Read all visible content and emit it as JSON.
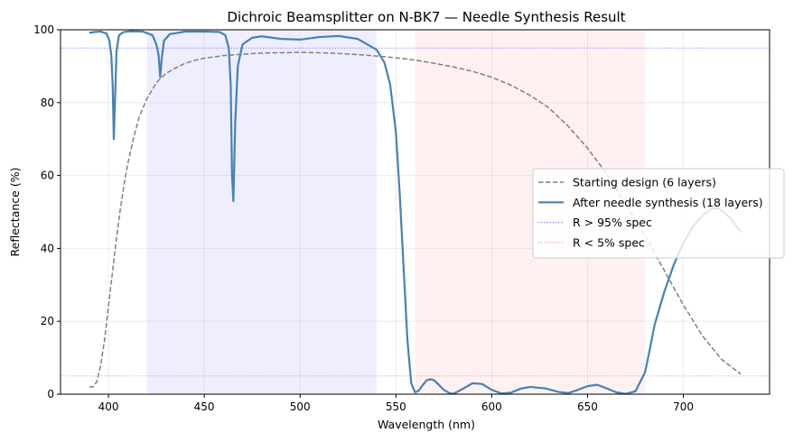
{
  "chart_data": {
    "type": "line",
    "title": "Dichroic Beamsplitter on N-BK7 — Needle Synthesis Result",
    "xlabel": "Wavelength (nm)",
    "ylabel": "Reflectance (%)",
    "xlim": [
      375,
      745
    ],
    "ylim": [
      0,
      100
    ],
    "xticks": [
      400,
      450,
      500,
      550,
      600,
      650,
      700
    ],
    "yticks": [
      0,
      20,
      40,
      60,
      80,
      100
    ],
    "grid": true,
    "legend_position": "center-right",
    "bands": [
      {
        "x0": 420,
        "x1": 540,
        "color": "#7777ff",
        "opacity": 0.12
      },
      {
        "x0": 560,
        "x1": 680,
        "color": "#ff8888",
        "opacity": 0.12
      }
    ],
    "series": [
      {
        "name": "Starting design (6 layers)",
        "color": "#808080",
        "style": "dashed",
        "x": [
          390,
          392,
          394,
          396,
          398,
          400,
          402,
          404,
          406,
          408,
          410,
          413,
          416,
          420,
          425,
          430,
          435,
          440,
          445,
          450,
          460,
          470,
          480,
          490,
          500,
          510,
          520,
          530,
          540,
          550,
          560,
          570,
          580,
          590,
          600,
          610,
          620,
          630,
          640,
          650,
          660,
          670,
          680,
          690,
          700,
          710,
          720,
          730
        ],
        "y": [
          2,
          2,
          3.5,
          8,
          15,
          24,
          33,
          42,
          50,
          57,
          63,
          70,
          76,
          81,
          85.5,
          88,
          89.5,
          90.8,
          91.6,
          92.2,
          92.9,
          93.3,
          93.6,
          93.7,
          93.8,
          93.7,
          93.5,
          93.2,
          92.8,
          92.3,
          91.7,
          90.8,
          89.8,
          88.6,
          87,
          84.8,
          82,
          78.5,
          73.5,
          67.5,
          60.5,
          52,
          43.5,
          34,
          24.5,
          16,
          9.5,
          5.5
        ]
      },
      {
        "name": "After needle synthesis (18 layers)",
        "color": "#4682b4",
        "style": "solid",
        "x": [
          390,
          393,
          396,
          399,
          400.5,
          401.5,
          402.2,
          402.8,
          403.4,
          404.2,
          405.5,
          408,
          412,
          418,
          423,
          425,
          426.2,
          427,
          427.8,
          429,
          432,
          440,
          450,
          458,
          461,
          462.8,
          463.8,
          464.5,
          465.2,
          466.2,
          467.5,
          470,
          475,
          480,
          490,
          500,
          510,
          520,
          530,
          540,
          544,
          547,
          550,
          552,
          554,
          556,
          558,
          560,
          562,
          564,
          566,
          568,
          570,
          572,
          575,
          578,
          580,
          585,
          590,
          595,
          600,
          605,
          610,
          615,
          620,
          628,
          635,
          640,
          645,
          650,
          655,
          660,
          665,
          670,
          675,
          680,
          682,
          685,
          690,
          695,
          700,
          705,
          710,
          715,
          718,
          721,
          725,
          730
        ],
        "y": [
          99.2,
          99.4,
          99.5,
          99,
          97,
          93,
          85,
          70,
          80,
          94,
          98.5,
          99.4,
          99.6,
          99.5,
          98.5,
          96,
          93,
          87,
          92,
          97,
          98.8,
          99.5,
          99.5,
          99.4,
          98.5,
          95,
          85,
          60,
          53,
          75,
          90,
          96,
          97.8,
          98.2,
          97.5,
          97.3,
          98,
          98.3,
          97.5,
          94.5,
          91,
          85,
          72,
          55,
          35,
          15,
          3,
          0.5,
          1,
          2.5,
          3.8,
          4.1,
          3.8,
          2.8,
          1.2,
          0.3,
          0.1,
          1.5,
          3,
          2.8,
          1.2,
          0.2,
          0.4,
          1.5,
          2,
          1.6,
          0.6,
          0.3,
          1.2,
          2.2,
          2.6,
          1.6,
          0.5,
          0.1,
          0.8,
          6,
          11,
          19,
          28,
          35.5,
          41.5,
          46,
          49,
          51,
          51,
          50,
          48,
          44.5
        ]
      },
      {
        "name": "R > 95% spec",
        "color": "#5b5bff",
        "style": "dotted",
        "x": [
          375,
          745
        ],
        "y": [
          95,
          95
        ]
      },
      {
        "name": "R < 5% spec",
        "color": "#ff7a7a",
        "style": "dotted",
        "x": [
          375,
          745
        ],
        "y": [
          5,
          5
        ]
      }
    ]
  }
}
